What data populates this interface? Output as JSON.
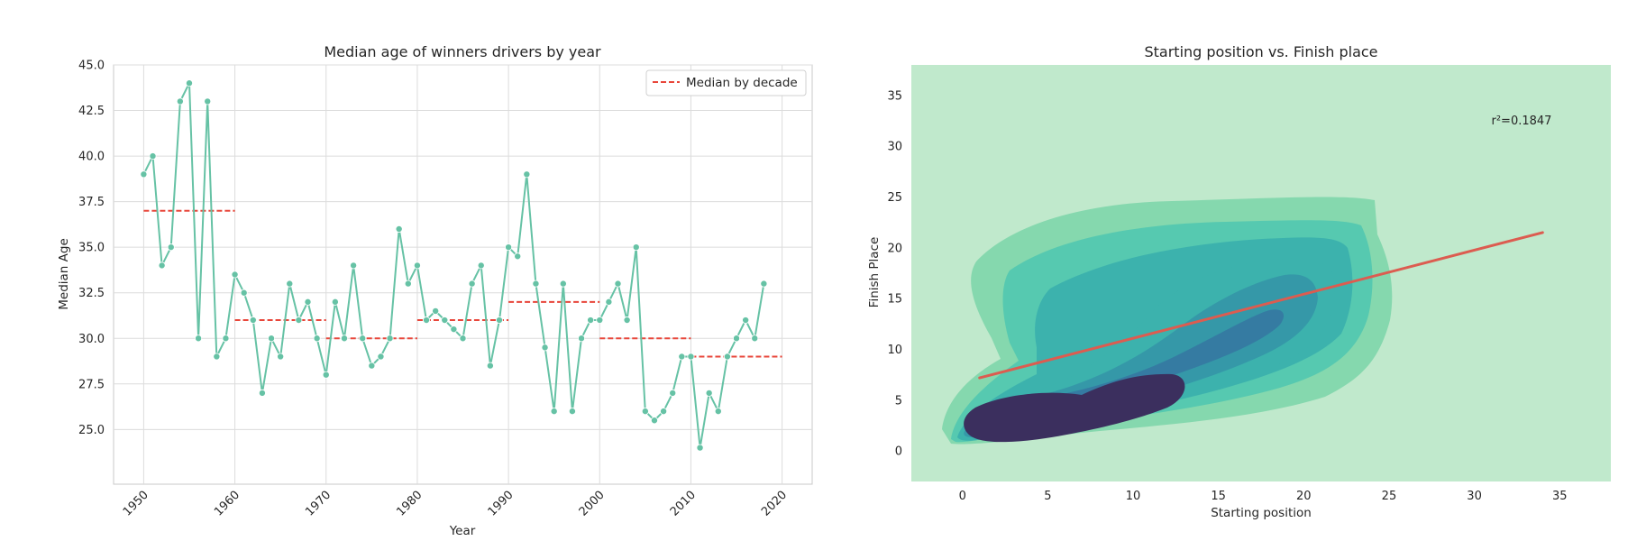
{
  "chart_data": [
    {
      "type": "line",
      "title": "Median age of  winners drivers by year",
      "xlabel": "Year",
      "ylabel": "Median Age",
      "xlim": [
        1946.7,
        2023.3
      ],
      "ylim": [
        22.0,
        45.0
      ],
      "x_ticks": [
        1950,
        1960,
        1970,
        1980,
        1990,
        2000,
        2010,
        2020
      ],
      "x_tick_labels": [
        "1950",
        "1960",
        "1970",
        "1980",
        "1990",
        "2000",
        "2010",
        "2020"
      ],
      "y_ticks": [
        25.0,
        27.5,
        30.0,
        32.5,
        35.0,
        37.5,
        40.0,
        42.5,
        45.0
      ],
      "y_tick_labels": [
        "25.0",
        "27.5",
        "30.0",
        "32.5",
        "35.0",
        "37.5",
        "40.0",
        "42.5",
        "45.0"
      ],
      "grid": true,
      "legend_position": "top-right",
      "line_color": "#66c2a5",
      "series": [
        {
          "x": [
            1950,
            1951,
            1952,
            1953,
            1954,
            1955,
            1956,
            1957,
            1958,
            1959,
            1960,
            1961,
            1962,
            1963,
            1964,
            1965,
            1966,
            1967,
            1968,
            1969,
            1970,
            1971,
            1972,
            1973,
            1974,
            1975,
            1976,
            1977,
            1978,
            1979,
            1980,
            1981,
            1982,
            1983,
            1984,
            1985,
            1986,
            1987,
            1988,
            1989,
            1990,
            1991,
            1992,
            1993,
            1994,
            1995,
            1996,
            1997,
            1998,
            1999,
            2000,
            2001,
            2002,
            2003,
            2004,
            2005,
            2006,
            2007,
            2008,
            2009,
            2010,
            2011,
            2012,
            2013,
            2014,
            2015,
            2016,
            2017,
            2018
          ],
          "y": [
            39,
            40,
            34,
            35,
            43,
            44,
            30,
            43,
            29,
            30,
            33.5,
            32.5,
            31,
            27,
            30,
            29,
            33,
            31,
            32,
            30,
            28,
            32,
            30,
            34,
            30,
            28.5,
            29,
            30,
            36,
            33,
            34,
            31,
            31.5,
            31,
            30.5,
            30,
            33,
            34,
            28.5,
            31,
            35,
            34.5,
            39,
            33,
            29.5,
            26,
            33,
            26,
            30,
            31,
            31,
            32,
            33,
            31,
            35,
            26,
            25.5,
            26,
            27,
            29,
            29,
            24,
            27,
            26,
            29,
            30,
            31,
            30,
            33
          ]
        }
      ],
      "decade_medians": {
        "name": "Median by decade",
        "color": "#e8463a",
        "segments": [
          {
            "x_start": 1950,
            "x_end": 1960,
            "value": 37
          },
          {
            "x_start": 1960,
            "x_end": 1970,
            "value": 31
          },
          {
            "x_start": 1970,
            "x_end": 1980,
            "value": 30
          },
          {
            "x_start": 1980,
            "x_end": 1990,
            "value": 31
          },
          {
            "x_start": 1990,
            "x_end": 2000,
            "value": 32
          },
          {
            "x_start": 2000,
            "x_end": 2010,
            "value": 30
          },
          {
            "x_start": 2010,
            "x_end": 2020,
            "value": 29
          }
        ]
      }
    },
    {
      "type": "heatmap",
      "subtype": "kde-density-with-regression",
      "title": "Starting position vs. Finish place",
      "xlabel": "Starting position",
      "ylabel": "Finish Place",
      "xlim": [
        -3.0,
        38.0
      ],
      "ylim": [
        -3.0,
        38.0
      ],
      "x_ticks": [
        0,
        5,
        10,
        15,
        20,
        25,
        30,
        35
      ],
      "x_tick_labels": [
        "0",
        "5",
        "10",
        "15",
        "20",
        "25",
        "30",
        "35"
      ],
      "y_ticks": [
        0,
        5,
        10,
        15,
        20,
        25,
        30,
        35
      ],
      "y_tick_labels": [
        "0",
        "5",
        "10",
        "15",
        "20",
        "25",
        "30",
        "35"
      ],
      "grid": false,
      "background_color": "#c0e9cc",
      "density_colors": [
        "#c0e9cc",
        "#85d8ae",
        "#56c9b0",
        "#3cb2ad",
        "#3598a8",
        "#357ba2",
        "#3b2f5e"
      ],
      "regression_line": {
        "color": "#dc5c50",
        "x": [
          1,
          34
        ],
        "y": [
          7.2,
          21.5
        ]
      },
      "annotation": {
        "text": "r²=0.1847",
        "x": 31,
        "y": 32.5
      }
    }
  ]
}
